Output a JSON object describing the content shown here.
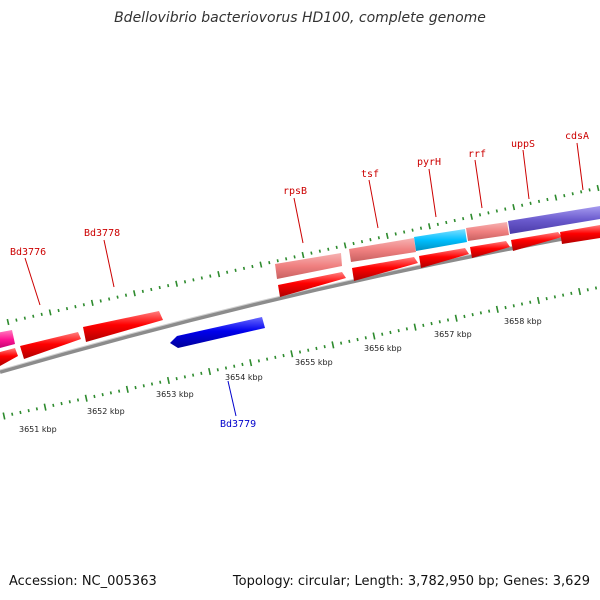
{
  "title": "Bdellovibrio bacteriovorus HD100, complete genome",
  "footer": {
    "accession": "Accession: NC_005363",
    "topology": "Topology: circular; Length: 3,782,950 bp; Genes: 3,629"
  },
  "colors": {
    "cds": "#ff0000",
    "cds_reverse": "#0000ee",
    "trna_like": "#f08080",
    "highlight_cyan": "#00bfff",
    "highlight_purple": "#6a5acd",
    "highlight_pink": "#ff1493",
    "backbone": "#8c8c8c",
    "tick": "#2e8b2e",
    "forward_label": "#cc0000",
    "reverse_label": "#0000cc"
  },
  "kbp_ticks": [
    "3651 kbp",
    "3652 kbp",
    "3653 kbp",
    "3654 kbp",
    "3655 kbp",
    "3656 kbp",
    "3657 kbp",
    "3658 kbp"
  ],
  "forward_labels": [
    "Bd3776",
    "Bd3778",
    "rpsB",
    "tsf",
    "pyrH",
    "rrf",
    "uppS",
    "cdsA"
  ],
  "reverse_labels": [
    "Bd3779"
  ]
}
